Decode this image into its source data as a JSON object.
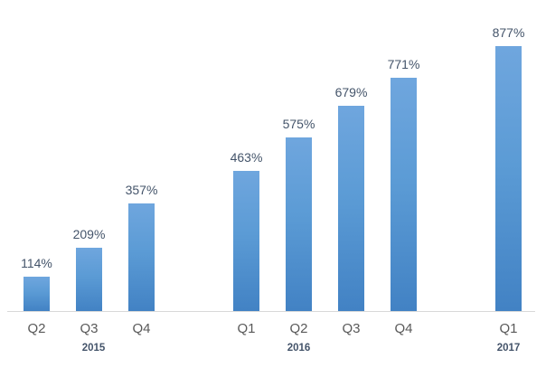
{
  "chart_data": {
    "type": "bar",
    "title": "",
    "unit": "%",
    "grid": false,
    "legend": false,
    "ylim": [
      0,
      1000
    ],
    "groups": [
      {
        "year": "2015",
        "bars": [
          {
            "quarter": "Q2",
            "value": 114,
            "label": "114%"
          },
          {
            "quarter": "Q3",
            "value": 209,
            "label": "209%"
          },
          {
            "quarter": "Q4",
            "value": 357,
            "label": "357%"
          }
        ]
      },
      {
        "year": "2016",
        "bars": [
          {
            "quarter": "Q1",
            "value": 463,
            "label": "463%"
          },
          {
            "quarter": "Q2",
            "value": 575,
            "label": "575%"
          },
          {
            "quarter": "Q3",
            "value": 679,
            "label": "679%"
          },
          {
            "quarter": "Q4",
            "value": 771,
            "label": "771%"
          }
        ]
      },
      {
        "year": "2017",
        "bars": [
          {
            "quarter": "Q1",
            "value": 877,
            "label": "877%"
          }
        ]
      }
    ]
  },
  "colors": {
    "bar_gradient_top": "#6FA6DE",
    "bar_gradient_mid": "#5B9BD5",
    "bar_gradient_bottom": "#4282C4",
    "axis_line": "#D9D9D9",
    "value_label": "#44546A",
    "category_label": "#595959",
    "year_label": "#44546A",
    "background": "#FFFFFF"
  }
}
